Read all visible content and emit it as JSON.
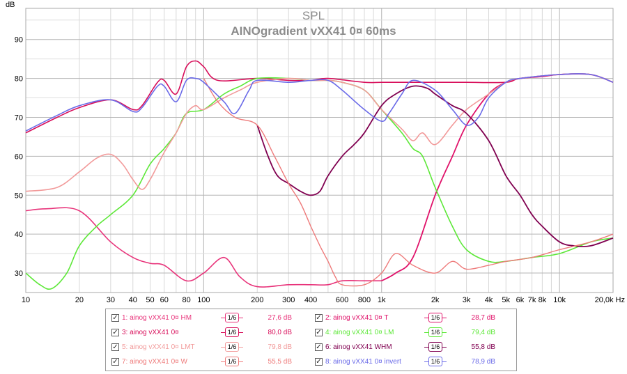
{
  "chart_data": {
    "type": "line",
    "title": "SPL",
    "subtitle": "AINOgradient vXX41 0¤ 60ms",
    "ylabel": "dB",
    "xlabel": "Hz",
    "x_scale": "log",
    "xlim": [
      10,
      20000
    ],
    "ylim": [
      25,
      98
    ],
    "grid": true,
    "x_ticks": [
      {
        "v": 10,
        "t": "10"
      },
      {
        "v": 20,
        "t": "20"
      },
      {
        "v": 30,
        "t": "30"
      },
      {
        "v": 40,
        "t": "40"
      },
      {
        "v": 50,
        "t": "50"
      },
      {
        "v": 60,
        "t": "60"
      },
      {
        "v": 80,
        "t": "80"
      },
      {
        "v": 100,
        "t": "100"
      },
      {
        "v": 200,
        "t": "200"
      },
      {
        "v": 300,
        "t": "300"
      },
      {
        "v": 400,
        "t": "400"
      },
      {
        "v": 600,
        "t": "600"
      },
      {
        "v": 800,
        "t": "800"
      },
      {
        "v": 1000,
        "t": "1k"
      },
      {
        "v": 2000,
        "t": "2k"
      },
      {
        "v": 3000,
        "t": "3k"
      },
      {
        "v": 4000,
        "t": "4k"
      },
      {
        "v": 5000,
        "t": "5k"
      },
      {
        "v": 6000,
        "t": "6k"
      },
      {
        "v": 7000,
        "t": "7k"
      },
      {
        "v": 8000,
        "t": "8k"
      },
      {
        "v": 10000,
        "t": "10k"
      },
      {
        "v": 20000,
        "t": "20,0k Hz"
      }
    ],
    "y_ticks": [
      30,
      40,
      50,
      60,
      70,
      80,
      90
    ],
    "series": [
      {
        "name": "1: ainog vXX41 0¤ HM",
        "color": "#e8337a",
        "width": 1.6,
        "points": [
          [
            10,
            46
          ],
          [
            13,
            46.5
          ],
          [
            20,
            46
          ],
          [
            30,
            38
          ],
          [
            40,
            34
          ],
          [
            50,
            32.5
          ],
          [
            60,
            32
          ],
          [
            80,
            28
          ],
          [
            100,
            30
          ],
          [
            130,
            34
          ],
          [
            160,
            29
          ],
          [
            200,
            26.5
          ],
          [
            300,
            27
          ],
          [
            400,
            27
          ],
          [
            500,
            27
          ],
          [
            600,
            28
          ],
          [
            800,
            28
          ],
          [
            1000,
            28
          ]
        ]
      },
      {
        "name": "2: ainog vXX41 0¤ T",
        "color": "#e0126a",
        "width": 1.8,
        "points": [
          [
            1000,
            28
          ],
          [
            1200,
            30
          ],
          [
            1500,
            34
          ],
          [
            2000,
            50
          ],
          [
            2500,
            60
          ],
          [
            3000,
            68
          ],
          [
            4000,
            76
          ],
          [
            5000,
            79
          ],
          [
            6000,
            80
          ],
          [
            8000,
            80.5
          ],
          [
            10000,
            81
          ],
          [
            15000,
            81
          ],
          [
            20000,
            79
          ]
        ]
      },
      {
        "name": "3: ainog vXX41 0¤",
        "color": "#d80e5a",
        "width": 1.6,
        "points": [
          [
            10,
            66
          ],
          [
            15,
            70
          ],
          [
            20,
            72.5
          ],
          [
            30,
            74.5
          ],
          [
            40,
            72
          ],
          [
            45,
            73
          ],
          [
            55,
            79
          ],
          [
            60,
            79.5
          ],
          [
            70,
            76
          ],
          [
            80,
            83
          ],
          [
            90,
            84.5
          ],
          [
            100,
            83
          ],
          [
            120,
            79.5
          ],
          [
            200,
            80
          ],
          [
            300,
            79.5
          ],
          [
            400,
            79.5
          ],
          [
            500,
            80
          ],
          [
            800,
            79
          ],
          [
            1000,
            79
          ],
          [
            1500,
            79
          ],
          [
            2000,
            79
          ],
          [
            3000,
            79
          ],
          [
            5000,
            79
          ],
          [
            6000,
            80
          ],
          [
            10000,
            81
          ],
          [
            15000,
            81
          ],
          [
            20000,
            79
          ]
        ]
      },
      {
        "name": "4: ainog vXX41 0¤ LM",
        "color": "#5de838",
        "width": 1.6,
        "points": [
          [
            10,
            30
          ],
          [
            12,
            27
          ],
          [
            14,
            26
          ],
          [
            17,
            30
          ],
          [
            20,
            37
          ],
          [
            25,
            42
          ],
          [
            30,
            45
          ],
          [
            40,
            50
          ],
          [
            50,
            58
          ],
          [
            60,
            62
          ],
          [
            70,
            66
          ],
          [
            80,
            71
          ],
          [
            100,
            72
          ],
          [
            130,
            76
          ],
          [
            160,
            78
          ],
          [
            200,
            80
          ],
          [
            300,
            80
          ],
          [
            400,
            79.5
          ],
          [
            500,
            79.5
          ],
          [
            600,
            79
          ],
          [
            800,
            77
          ],
          [
            1000,
            72
          ],
          [
            1300,
            66
          ],
          [
            1500,
            62
          ],
          [
            1700,
            60
          ],
          [
            2000,
            52
          ],
          [
            2500,
            42
          ],
          [
            3000,
            36
          ],
          [
            4000,
            33
          ],
          [
            5000,
            33
          ],
          [
            7000,
            34
          ],
          [
            10000,
            35
          ],
          [
            15000,
            38
          ],
          [
            20000,
            39
          ]
        ]
      },
      {
        "name": "5: ainog vXX41 0¤ LMT",
        "color": "#f29a9a",
        "width": 1.6,
        "points": [
          [
            10,
            51
          ],
          [
            15,
            52
          ],
          [
            20,
            56
          ],
          [
            25,
            59.5
          ],
          [
            30,
            60.5
          ],
          [
            35,
            58
          ],
          [
            40,
            54
          ],
          [
            45,
            51.5
          ],
          [
            50,
            54
          ],
          [
            60,
            61
          ],
          [
            70,
            66
          ],
          [
            80,
            71
          ],
          [
            90,
            73
          ],
          [
            100,
            72
          ],
          [
            130,
            75
          ],
          [
            160,
            77
          ],
          [
            200,
            79
          ],
          [
            300,
            80
          ],
          [
            400,
            79.5
          ],
          [
            500,
            79.5
          ],
          [
            600,
            79
          ],
          [
            800,
            77
          ],
          [
            1000,
            72
          ],
          [
            1300,
            67
          ],
          [
            1500,
            64
          ],
          [
            1700,
            66
          ],
          [
            2000,
            63
          ],
          [
            2500,
            68
          ],
          [
            3000,
            72
          ],
          [
            4000,
            76
          ],
          [
            5000,
            79
          ],
          [
            6000,
            80
          ],
          [
            10000,
            81
          ],
          [
            15000,
            81
          ],
          [
            20000,
            79
          ]
        ]
      },
      {
        "name": "6: ainog vXX41 WHM",
        "color": "#800050",
        "width": 1.8,
        "points": [
          [
            200,
            68
          ],
          [
            230,
            60
          ],
          [
            260,
            55
          ],
          [
            300,
            53
          ],
          [
            350,
            51
          ],
          [
            400,
            50
          ],
          [
            450,
            51
          ],
          [
            500,
            55
          ],
          [
            600,
            60
          ],
          [
            700,
            63
          ],
          [
            800,
            66
          ],
          [
            1000,
            73
          ],
          [
            1200,
            76
          ],
          [
            1500,
            78
          ],
          [
            1800,
            77.5
          ],
          [
            2000,
            76
          ],
          [
            2500,
            73
          ],
          [
            3000,
            71
          ],
          [
            4000,
            64
          ],
          [
            5000,
            55
          ],
          [
            6000,
            50
          ],
          [
            7000,
            45
          ],
          [
            8000,
            42
          ],
          [
            10000,
            38
          ],
          [
            12000,
            37
          ],
          [
            15000,
            37
          ],
          [
            20000,
            39
          ]
        ]
      },
      {
        "name": "7: ainog vXX41 0¤ W",
        "color": "#ee7a7a",
        "width": 1.4,
        "points": [
          [
            100,
            80
          ],
          [
            120,
            74
          ],
          [
            150,
            70
          ],
          [
            200,
            68
          ],
          [
            250,
            60
          ],
          [
            300,
            53
          ],
          [
            350,
            48
          ],
          [
            400,
            42
          ],
          [
            450,
            37
          ],
          [
            500,
            33
          ],
          [
            550,
            29
          ],
          [
            600,
            27
          ],
          [
            800,
            27
          ],
          [
            1000,
            30
          ],
          [
            1200,
            35
          ],
          [
            1500,
            32
          ],
          [
            2000,
            30
          ],
          [
            2500,
            33
          ],
          [
            3000,
            31
          ],
          [
            4000,
            32
          ],
          [
            5000,
            33
          ],
          [
            7000,
            34
          ],
          [
            10000,
            36
          ],
          [
            15000,
            38
          ],
          [
            20000,
            40
          ]
        ]
      },
      {
        "name": "8: ainog vXX41 0¤ invert",
        "color": "#6a6ae8",
        "width": 1.6,
        "points": [
          [
            10,
            66.5
          ],
          [
            15,
            70.5
          ],
          [
            20,
            73
          ],
          [
            30,
            74.5
          ],
          [
            40,
            71.5
          ],
          [
            45,
            72.5
          ],
          [
            55,
            78
          ],
          [
            60,
            78
          ],
          [
            70,
            74
          ],
          [
            80,
            79.5
          ],
          [
            90,
            80
          ],
          [
            100,
            79
          ],
          [
            130,
            74
          ],
          [
            150,
            71
          ],
          [
            180,
            77
          ],
          [
            200,
            79.5
          ],
          [
            300,
            79
          ],
          [
            400,
            79.5
          ],
          [
            500,
            79.5
          ],
          [
            600,
            77
          ],
          [
            800,
            72
          ],
          [
            1000,
            69
          ],
          [
            1100,
            71
          ],
          [
            1300,
            76
          ],
          [
            1500,
            79.5
          ],
          [
            2000,
            77
          ],
          [
            2500,
            72
          ],
          [
            3000,
            68
          ],
          [
            3500,
            70
          ],
          [
            4000,
            75
          ],
          [
            5000,
            79
          ],
          [
            6000,
            80
          ],
          [
            10000,
            81
          ],
          [
            15000,
            81
          ],
          [
            20000,
            79
          ]
        ]
      }
    ]
  },
  "legend": {
    "items": [
      {
        "label": "1: ainog vXX41 0¤ HM",
        "smoothing": "1/6",
        "value": "27,6 dB",
        "color": "#e8337a",
        "checked": "✓"
      },
      {
        "label": "2: ainog vXX41 0¤ T",
        "smoothing": "1/6",
        "value": "28,7 dB",
        "color": "#e0126a",
        "checked": "✓"
      },
      {
        "label": "3: ainog vXX41 0¤",
        "smoothing": "1/6",
        "value": "80,0 dB",
        "color": "#d80e5a",
        "checked": "✓"
      },
      {
        "label": "4: ainog vXX41 0¤ LM",
        "smoothing": "1/6",
        "value": "79,4 dB",
        "color": "#5de838",
        "checked": "✓"
      },
      {
        "label": "5: ainog vXX41 0¤ LMT",
        "smoothing": "1/6",
        "value": "79,8 dB",
        "color": "#f29a9a",
        "checked": "✓"
      },
      {
        "label": "6: ainog vXX41 WHM",
        "smoothing": "1/6",
        "value": "55,8 dB",
        "color": "#800050",
        "checked": "✓"
      },
      {
        "label": "7: ainog vXX41 0¤ W",
        "smoothing": "1/6",
        "value": "55,5 dB",
        "color": "#ee7a7a",
        "checked": "✓"
      },
      {
        "label": "8: ainog vXX41 0¤ invert",
        "smoothing": "1/6",
        "value": "78,9 dB",
        "color": "#6a6ae8",
        "checked": "✓"
      }
    ]
  }
}
